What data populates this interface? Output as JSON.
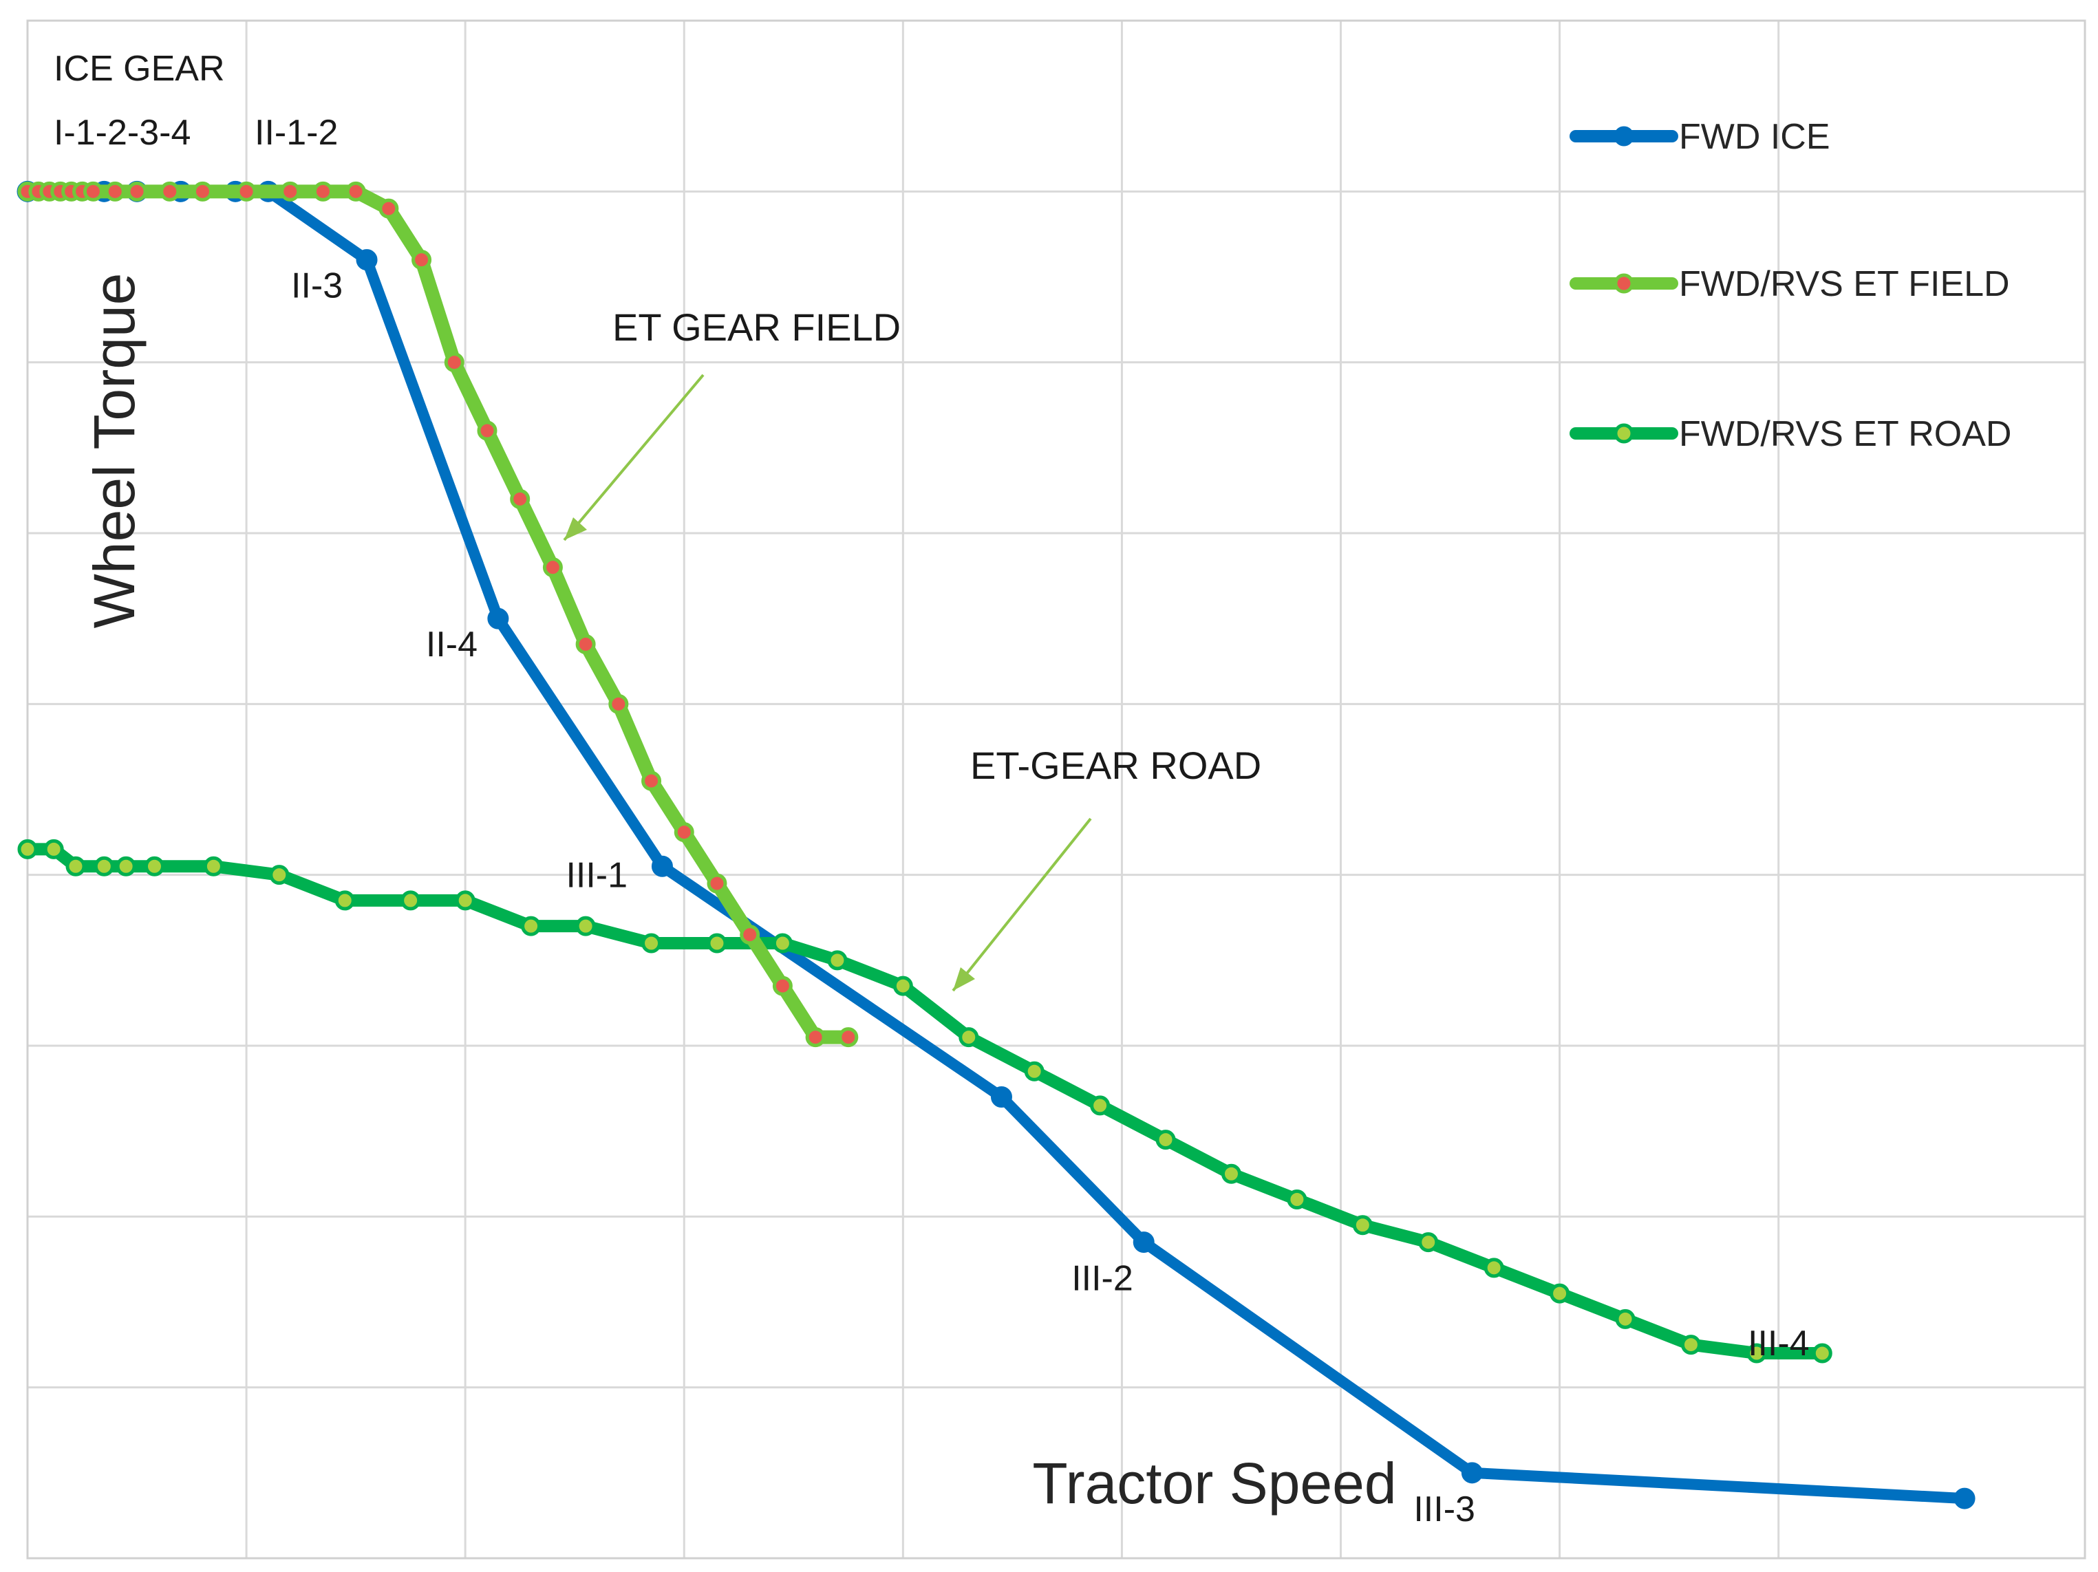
{
  "chart_data": {
    "type": "line",
    "title": "",
    "xlabel": "Tractor Speed",
    "ylabel": "Wheel Torque",
    "grid": true,
    "legend_position": "top-right",
    "xlim": [
      0,
      9.4
    ],
    "ylim": [
      0,
      9
    ],
    "series": [
      {
        "name": "FWD ICE",
        "color": "#0070C0",
        "marker": "circle",
        "x": [
          0.0,
          0.35,
          0.5,
          0.7,
          0.95,
          1.1,
          1.55,
          2.15,
          2.9,
          4.45,
          5.1,
          6.6,
          8.85
        ],
        "y": [
          8.0,
          8.0,
          8.0,
          8.0,
          8.0,
          8.0,
          7.6,
          5.5,
          4.05,
          2.7,
          1.85,
          0.5,
          0.35
        ],
        "point_labels": [
          "",
          "",
          "",
          "",
          "",
          "",
          "II-3",
          "II-4",
          "III-1",
          "",
          "III-2",
          "III-3",
          ""
        ]
      },
      {
        "name": "FWD/RVS ET FIELD",
        "color": "#70C93A",
        "marker": "circle",
        "marker_color": "#E8584F",
        "x": [
          0.0,
          0.05,
          0.1,
          0.15,
          0.2,
          0.25,
          0.3,
          0.4,
          0.5,
          0.65,
          0.8,
          1.0,
          1.2,
          1.35,
          1.5,
          1.65,
          1.8,
          1.95,
          2.1,
          2.25,
          2.4,
          2.55,
          2.7,
          2.85,
          3.0,
          3.15,
          3.3,
          3.45,
          3.6,
          3.75
        ],
        "y": [
          8.0,
          8.0,
          8.0,
          8.0,
          8.0,
          8.0,
          8.0,
          8.0,
          8.0,
          8.0,
          8.0,
          8.0,
          8.0,
          8.0,
          8.0,
          7.9,
          7.6,
          7.0,
          6.6,
          6.2,
          5.8,
          5.35,
          5.0,
          4.55,
          4.25,
          3.95,
          3.65,
          3.35,
          3.05,
          3.05
        ]
      },
      {
        "name": "FWD/RVS ET ROAD",
        "color": "#00B050",
        "marker": "circle",
        "marker_color": "#A9D23F",
        "x": [
          0.0,
          0.12,
          0.22,
          0.35,
          0.45,
          0.58,
          0.85,
          1.15,
          1.45,
          1.75,
          2.0,
          2.3,
          2.55,
          2.85,
          3.15,
          3.45,
          3.7,
          4.0,
          4.3,
          4.6,
          4.9,
          5.2,
          5.5,
          5.8,
          6.1,
          6.4,
          6.7,
          7.0,
          7.3,
          7.6,
          7.9,
          8.2
        ],
        "y": [
          4.15,
          4.15,
          4.05,
          4.05,
          4.05,
          4.05,
          4.05,
          4.0,
          3.85,
          3.85,
          3.85,
          3.7,
          3.7,
          3.6,
          3.6,
          3.6,
          3.5,
          3.35,
          3.05,
          2.85,
          2.65,
          2.45,
          2.25,
          2.1,
          1.95,
          1.85,
          1.7,
          1.55,
          1.4,
          1.25,
          1.2,
          1.2
        ]
      }
    ],
    "annotations": {
      "ice_gear": "ICE GEAR",
      "gear_group_1": "I-1-2-3-4",
      "gear_group_2": "II-1-2",
      "et_gear_field": "ET GEAR FIELD",
      "et_gear_road": "ET-GEAR ROAD",
      "iii_4": "III-4"
    }
  }
}
